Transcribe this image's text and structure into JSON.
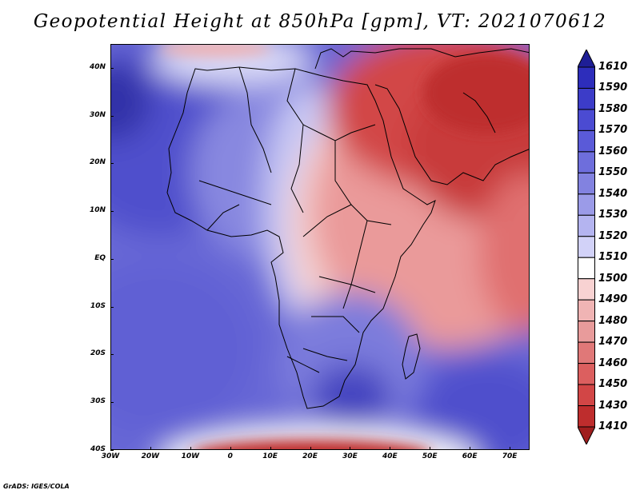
{
  "title": "Geopotential Height at 850hPa [gpm], VT: 2021070612",
  "credit": "GrADS: IGES/COLA",
  "map": {
    "lon_range": [
      -30,
      75
    ],
    "lat_range": [
      -40,
      45
    ],
    "lat_labels": [
      "40N",
      "30N",
      "20N",
      "10N",
      "EQ",
      "10S",
      "20S",
      "30S",
      "40S"
    ],
    "lat_values": [
      40,
      30,
      20,
      10,
      0,
      -10,
      -20,
      -30,
      -40
    ],
    "lon_labels": [
      "30W",
      "20W",
      "10W",
      "0",
      "10E",
      "20E",
      "30E",
      "40E",
      "50E",
      "60E",
      "70E"
    ],
    "lon_values": [
      -30,
      -20,
      -10,
      0,
      10,
      20,
      30,
      40,
      50,
      60,
      70
    ]
  },
  "colorbar": {
    "labels": [
      "1610",
      "1590",
      "1580",
      "1570",
      "1560",
      "1550",
      "1540",
      "1530",
      "1520",
      "1510",
      "1500",
      "1490",
      "1480",
      "1470",
      "1460",
      "1450",
      "1430",
      "1410"
    ],
    "colors": [
      "#1e1e96",
      "#2d2dbb",
      "#3c3cc8",
      "#4b4bd2",
      "#5a5ad8",
      "#6e6edc",
      "#8282e0",
      "#9b9be8",
      "#b4b4f0",
      "#d2d2f8",
      "#ffffff",
      "#f8d2d2",
      "#f0b4b4",
      "#e89b9b",
      "#e07878",
      "#dc5f5f",
      "#d24646",
      "#be2d2d",
      "#a01e1e"
    ]
  }
}
